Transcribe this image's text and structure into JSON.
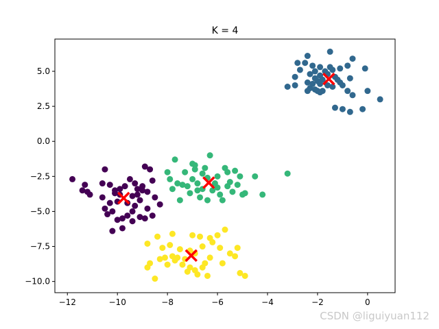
{
  "chart_data": {
    "type": "scatter",
    "title": "K = 4",
    "xlabel": "",
    "ylabel": "",
    "xlim": [
      -12.5,
      1.1
    ],
    "ylim": [
      -10.8,
      7.3
    ],
    "xticks": [
      -12,
      -10,
      -8,
      -6,
      -4,
      -2,
      0
    ],
    "yticks": [
      -10.0,
      -7.5,
      -5.0,
      -2.5,
      0.0,
      2.5,
      5.0
    ],
    "xtick_labels": [
      "−12",
      "−10",
      "−8",
      "−6",
      "−4",
      "−2",
      "0"
    ],
    "ytick_labels": [
      "−10.0",
      "−7.5",
      "−5.0",
      "−2.5",
      "0.0",
      "2.5",
      "5.0"
    ],
    "grid": false,
    "series": [
      {
        "color": "#440154",
        "points": [
          [
            -11.8,
            -2.7
          ],
          [
            -11.4,
            -3.5
          ],
          [
            -11.3,
            -3.1
          ],
          [
            -11.2,
            -3.6
          ],
          [
            -11.1,
            -3.8
          ],
          [
            -10.5,
            -2.0
          ],
          [
            -10.6,
            -3.0
          ],
          [
            -10.3,
            -3.1
          ],
          [
            -10.1,
            -3.7
          ],
          [
            -10.0,
            -4.3
          ],
          [
            -9.9,
            -3.4
          ],
          [
            -9.7,
            -3.2
          ],
          [
            -9.5,
            -2.7
          ],
          [
            -9.3,
            -3.0
          ],
          [
            -9.2,
            -3.4
          ],
          [
            -9.0,
            -3.5
          ],
          [
            -8.8,
            -3.6
          ],
          [
            -8.7,
            -2.0
          ],
          [
            -8.6,
            -2.8
          ],
          [
            -8.5,
            -4.0
          ],
          [
            -8.3,
            -4.5
          ],
          [
            -8.8,
            -4.8
          ],
          [
            -8.6,
            -5.3
          ],
          [
            -8.9,
            -5.5
          ],
          [
            -9.1,
            -4.2
          ],
          [
            -9.3,
            -4.6
          ],
          [
            -9.4,
            -5.0
          ],
          [
            -9.6,
            -5.3
          ],
          [
            -9.8,
            -5.5
          ],
          [
            -10.0,
            -5.6
          ],
          [
            -10.2,
            -5.0
          ],
          [
            -10.4,
            -5.2
          ],
          [
            -10.5,
            -4.8
          ],
          [
            -10.3,
            -4.4
          ],
          [
            -10.6,
            -4.0
          ],
          [
            -10.2,
            -6.4
          ],
          [
            -9.8,
            -6.2
          ],
          [
            -9.4,
            -5.7
          ],
          [
            -9.1,
            -5.4
          ],
          [
            -9.2,
            -3.8
          ],
          [
            -9.9,
            -3.8
          ],
          [
            -10.1,
            -3.5
          ],
          [
            -9.0,
            -3.2
          ],
          [
            -8.9,
            -1.8
          ],
          [
            -9.4,
            -3.9
          ],
          [
            -9.6,
            -4.4
          ]
        ]
      },
      {
        "color": "#31688e",
        "points": [
          [
            -3.2,
            3.9
          ],
          [
            -2.9,
            4.0
          ],
          [
            -2.9,
            4.6
          ],
          [
            -2.7,
            5.1
          ],
          [
            -2.8,
            5.6
          ],
          [
            -2.5,
            5.6
          ],
          [
            -2.4,
            6.1
          ],
          [
            -2.2,
            5.4
          ],
          [
            -2.3,
            4.8
          ],
          [
            -2.1,
            4.5
          ],
          [
            -2.0,
            4.3
          ],
          [
            -1.9,
            4.1
          ],
          [
            -2.3,
            3.8
          ],
          [
            -2.4,
            3.6
          ],
          [
            -2.1,
            3.7
          ],
          [
            -1.9,
            3.5
          ],
          [
            -1.8,
            3.6
          ],
          [
            -2.1,
            5.0
          ],
          [
            -1.9,
            5.3
          ],
          [
            -1.7,
            5.0
          ],
          [
            -1.6,
            4.8
          ],
          [
            -1.5,
            5.3
          ],
          [
            -1.4,
            5.1
          ],
          [
            -1.3,
            4.6
          ],
          [
            -1.2,
            4.4
          ],
          [
            -1.1,
            4.2
          ],
          [
            -1.0,
            4.0
          ],
          [
            -1.4,
            3.9
          ],
          [
            -1.6,
            4.0
          ],
          [
            -1.5,
            6.4
          ],
          [
            -1.1,
            5.2
          ],
          [
            -0.8,
            5.4
          ],
          [
            -0.6,
            5.9
          ],
          [
            -0.7,
            4.5
          ],
          [
            -0.8,
            3.6
          ],
          [
            -0.6,
            3.3
          ],
          [
            -1.3,
            2.4
          ],
          [
            -1.0,
            2.3
          ],
          [
            -0.7,
            2.1
          ],
          [
            -0.1,
            5.2
          ],
          [
            0.0,
            3.6
          ],
          [
            0.5,
            3.0
          ],
          [
            -0.2,
            2.3
          ],
          [
            -2.4,
            4.2
          ],
          [
            -1.8,
            4.4
          ],
          [
            -2.2,
            4.1
          ],
          [
            -1.9,
            4.7
          ],
          [
            -2.0,
            3.6
          ]
        ]
      },
      {
        "color": "#35b779",
        "points": [
          [
            -8.0,
            -2.2
          ],
          [
            -7.9,
            -2.7
          ],
          [
            -7.8,
            -3.4
          ],
          [
            -7.6,
            -3.0
          ],
          [
            -7.7,
            -1.3
          ],
          [
            -7.5,
            -4.2
          ],
          [
            -7.4,
            -3.1
          ],
          [
            -7.3,
            -2.2
          ],
          [
            -7.1,
            -3.7
          ],
          [
            -7.0,
            -2.7
          ],
          [
            -6.9,
            -2.0
          ],
          [
            -6.8,
            -3.5
          ],
          [
            -6.7,
            -4.0
          ],
          [
            -6.6,
            -2.3
          ],
          [
            -6.5,
            -1.9
          ],
          [
            -6.4,
            -2.6
          ],
          [
            -6.3,
            -1.0
          ],
          [
            -6.2,
            -3.5
          ],
          [
            -6.1,
            -3.0
          ],
          [
            -6.0,
            -2.5
          ],
          [
            -5.9,
            -3.8
          ],
          [
            -5.8,
            -4.2
          ],
          [
            -5.7,
            -1.9
          ],
          [
            -5.6,
            -2.2
          ],
          [
            -5.5,
            -2.9
          ],
          [
            -5.4,
            -3.6
          ],
          [
            -5.3,
            -2.1
          ],
          [
            -5.2,
            -3.1
          ],
          [
            -5.1,
            -2.5
          ],
          [
            -5.0,
            -3.8
          ],
          [
            -4.9,
            -3.7
          ],
          [
            -4.5,
            -2.5
          ],
          [
            -4.2,
            -3.8
          ],
          [
            -3.2,
            -2.3
          ],
          [
            -6.8,
            -3.0
          ],
          [
            -7.2,
            -3.2
          ],
          [
            -6.6,
            -3.4
          ],
          [
            -6.4,
            -4.2
          ],
          [
            -6.0,
            -3.3
          ],
          [
            -5.6,
            -3.2
          ],
          [
            -7.0,
            -1.6
          ],
          [
            -6.9,
            -1.7
          ]
        ]
      },
      {
        "color": "#fde725",
        "points": [
          [
            -8.8,
            -7.3
          ],
          [
            -8.7,
            -8.7
          ],
          [
            -8.8,
            -9.0
          ],
          [
            -8.5,
            -9.8
          ],
          [
            -8.3,
            -8.4
          ],
          [
            -8.4,
            -6.8
          ],
          [
            -8.2,
            -7.6
          ],
          [
            -8.0,
            -8.8
          ],
          [
            -7.9,
            -7.4
          ],
          [
            -7.8,
            -6.6
          ],
          [
            -7.7,
            -8.5
          ],
          [
            -7.6,
            -8.3
          ],
          [
            -7.5,
            -7.7
          ],
          [
            -7.3,
            -8.4
          ],
          [
            -7.2,
            -9.3
          ],
          [
            -7.0,
            -6.7
          ],
          [
            -6.9,
            -8.0
          ],
          [
            -6.8,
            -9.5
          ],
          [
            -6.7,
            -6.8
          ],
          [
            -6.6,
            -7.5
          ],
          [
            -6.5,
            -8.7
          ],
          [
            -6.4,
            -9.6
          ],
          [
            -6.3,
            -8.3
          ],
          [
            -6.2,
            -7.2
          ],
          [
            -6.0,
            -6.7
          ],
          [
            -5.9,
            -7.6
          ],
          [
            -5.8,
            -8.7
          ],
          [
            -5.7,
            -6.3
          ],
          [
            -5.5,
            -8.0
          ],
          [
            -5.3,
            -8.2
          ],
          [
            -5.2,
            -7.6
          ],
          [
            -5.1,
            -9.4
          ],
          [
            -4.9,
            -9.6
          ],
          [
            -7.4,
            -8.8
          ],
          [
            -7.1,
            -9.0
          ],
          [
            -6.9,
            -9.2
          ],
          [
            -6.6,
            -9.0
          ],
          [
            -7.1,
            -7.8
          ],
          [
            -7.8,
            -8.2
          ],
          [
            -6.3,
            -6.9
          ],
          [
            -8.1,
            -8.3
          ]
        ]
      }
    ],
    "centers": {
      "color": "#ff0000",
      "points": [
        [
          -9.75,
          -4.05
        ],
        [
          -1.55,
          4.45
        ],
        [
          -6.35,
          -2.95
        ],
        [
          -7.05,
          -8.15
        ]
      ]
    }
  },
  "watermark": "CSDN @liguiyuan112"
}
